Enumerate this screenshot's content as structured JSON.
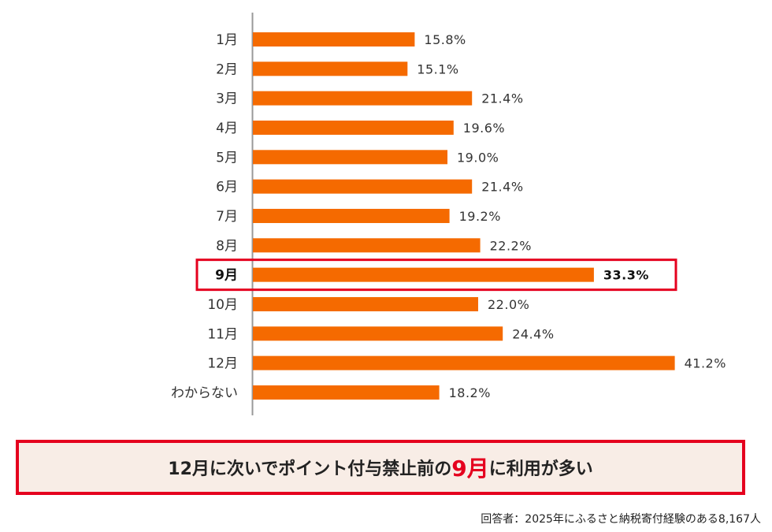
{
  "chart_data": {
    "type": "bar",
    "orientation": "horizontal",
    "categories": [
      "1月",
      "2月",
      "3月",
      "4月",
      "5月",
      "6月",
      "7月",
      "8月",
      "9月",
      "10月",
      "11月",
      "12月",
      "わからない"
    ],
    "values": [
      15.8,
      15.1,
      21.4,
      19.6,
      19.0,
      21.4,
      19.2,
      22.2,
      33.3,
      22.0,
      24.4,
      41.2,
      18.2
    ],
    "value_labels": [
      "15.8%",
      "15.1%",
      "21.4%",
      "19.6%",
      "19.0%",
      "21.4%",
      "19.2%",
      "22.2%",
      "33.3%",
      "22.0%",
      "24.4%",
      "41.2%",
      "18.2%"
    ],
    "highlighted_category": "9月",
    "bar_color": "#f56a00",
    "highlight_color": "#e5001e",
    "grid": false,
    "legend": "none"
  },
  "callout": {
    "text_before": "12月に次いでポイント付与禁止前の",
    "highlight": "9月",
    "text_after": "に利用が多い"
  },
  "footnote": "回答者：2025年にふるさと納税寄付経験のある8,167人"
}
